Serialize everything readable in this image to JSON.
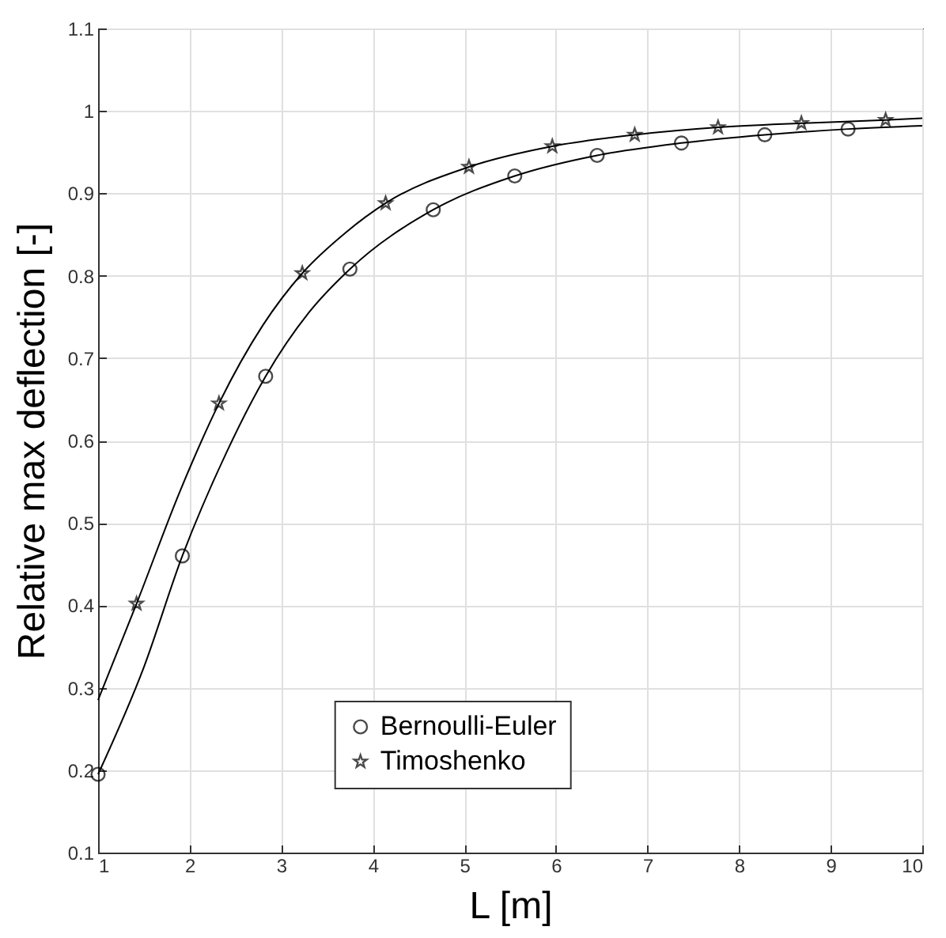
{
  "chart_data": {
    "type": "line",
    "xlabel": "L [m]",
    "ylabel": "Relative max deflection [-]",
    "xlim": [
      1,
      10
    ],
    "xticks": [
      1,
      2,
      3,
      4,
      5,
      6,
      7,
      8,
      9,
      10
    ],
    "ylim": [
      0.1,
      1.1
    ],
    "yticks": [
      0.1,
      0.2,
      0.3,
      0.4,
      0.5,
      0.6,
      0.7,
      0.8,
      0.9,
      1,
      1.1
    ],
    "grid": true,
    "legend": "bottom",
    "series": [
      {
        "color": "#000000",
        "marker": "none",
        "x": [
          1,
          1.5,
          1.92,
          2.4,
          2.83,
          3.3,
          3.75,
          4.66,
          5.55,
          6.45,
          7.37,
          8.28,
          9.19,
          10
        ],
        "values": [
          0.195,
          0.325,
          0.46,
          0.585,
          0.678,
          0.755,
          0.808,
          0.88,
          0.921,
          0.946,
          0.961,
          0.971,
          0.978,
          0.982
        ]
      },
      {
        "color": "#000000",
        "marker": "none",
        "x": [
          1,
          1.42,
          1.9,
          2.32,
          2.8,
          3.23,
          3.7,
          4.14,
          5.05,
          5.96,
          6.86,
          7.77,
          8.68,
          9.6,
          10
        ],
        "values": [
          0.285,
          0.402,
          0.54,
          0.645,
          0.74,
          0.803,
          0.852,
          0.888,
          0.932,
          0.957,
          0.971,
          0.98,
          0.985,
          0.989,
          0.991
        ]
      },
      {
        "type": "scatter",
        "name": "Bernoulli-Euler",
        "color": "#000000",
        "marker": "circle",
        "x": [
          1,
          1.92,
          2.83,
          3.75,
          4.66,
          5.55,
          6.45,
          7.37,
          8.28,
          9.19
        ],
        "values": [
          0.195,
          0.46,
          0.678,
          0.808,
          0.88,
          0.921,
          0.946,
          0.961,
          0.971,
          0.978
        ]
      },
      {
        "type": "scatter",
        "name": "Timoshenko",
        "color": "#000000",
        "marker": "star",
        "x": [
          1.42,
          2.32,
          3.23,
          4.14,
          5.05,
          5.96,
          6.86,
          7.77,
          8.68,
          9.6
        ],
        "values": [
          0.402,
          0.645,
          0.803,
          0.888,
          0.932,
          0.957,
          0.971,
          0.98,
          0.985,
          0.989
        ]
      }
    ]
  }
}
